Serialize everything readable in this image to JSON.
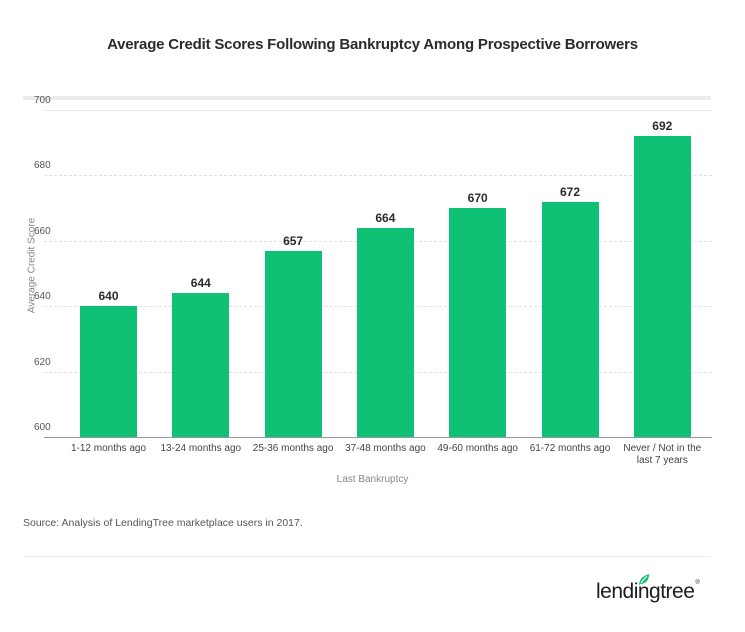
{
  "header": {
    "title": "Average Credit Scores Following Bankruptcy Among Prospective Borrowers"
  },
  "axes": {
    "y_label": "Average Credit Score",
    "x_label": "Last Bankruptcy",
    "y_ticks": [
      "700",
      "680",
      "660",
      "640",
      "620",
      "600"
    ]
  },
  "bars": [
    {
      "category": "1-12 months ago",
      "value": "640"
    },
    {
      "category": "13-24 months ago",
      "value": "644"
    },
    {
      "category": "25-36 months ago",
      "value": "657"
    },
    {
      "category": "37-48 months ago",
      "value": "664"
    },
    {
      "category": "49-60 months ago",
      "value": "670"
    },
    {
      "category": "61-72 months ago",
      "value": "672"
    },
    {
      "category": "Never / Not in the last 7 years",
      "value": "692"
    }
  ],
  "footer": {
    "source": "Source: Analysis of LendingTree marketplace users in 2017.",
    "logo_text": "lendingtree",
    "logo_reg": "®"
  },
  "colors": {
    "bar": "#0fc174",
    "text": "#2b2b2b"
  },
  "chart_data": {
    "type": "bar",
    "title": "Average Credit Scores Following Bankruptcy Among Prospective Borrowers",
    "categories": [
      "1-12 months ago",
      "13-24 months ago",
      "25-36 months ago",
      "37-48 months ago",
      "49-60 months ago",
      "61-72 months ago",
      "Never / Not in the last 7 years"
    ],
    "values": [
      640,
      644,
      657,
      664,
      670,
      672,
      692
    ],
    "xlabel": "Last Bankruptcy",
    "ylabel": "Average Credit Score",
    "ylim": [
      600,
      700
    ],
    "yticks": [
      600,
      620,
      640,
      660,
      680,
      700
    ],
    "grid": true,
    "data_labels": true,
    "legend": null,
    "annotations": [
      "Source: Analysis of LendingTree marketplace users in 2017."
    ]
  }
}
